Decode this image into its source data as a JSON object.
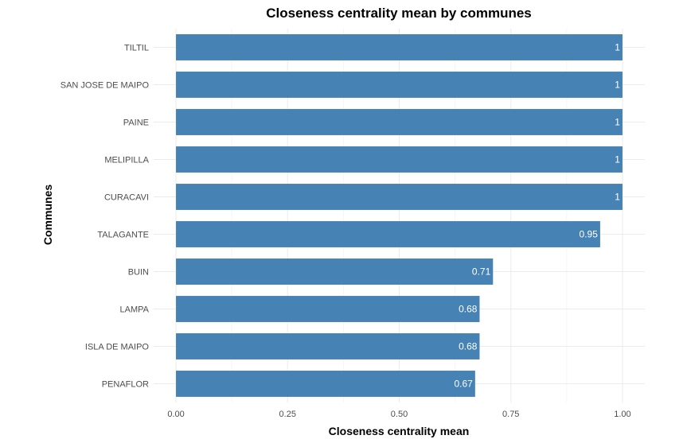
{
  "chart_data": {
    "type": "bar",
    "orientation": "horizontal",
    "title": "Closeness centrality mean by communes",
    "xlabel": "Closeness centrality mean",
    "ylabel": "Communes",
    "categories": [
      "TILTIL",
      "SAN JOSE DE MAIPO",
      "PAINE",
      "MELIPILLA",
      "CURACAVI",
      "TALAGANTE",
      "BUIN",
      "LAMPA",
      "ISLA DE MAIPO",
      "PENAFLOR"
    ],
    "values": [
      1,
      1,
      1,
      1,
      1,
      0.95,
      0.71,
      0.68,
      0.68,
      0.67
    ],
    "data_labels": [
      "1",
      "1",
      "1",
      "1",
      "1",
      "0.95",
      "0.71",
      "0.68",
      "0.68",
      "0.67"
    ],
    "xticks": [
      0,
      0.25,
      0.5,
      0.75,
      1
    ],
    "xtick_labels": [
      "0.00",
      "0.25",
      "0.50",
      "0.75",
      "1.00"
    ],
    "xlim": [
      -0.05,
      1.05
    ],
    "grid": true,
    "legend": "none",
    "bar_color": "#4682b4"
  }
}
